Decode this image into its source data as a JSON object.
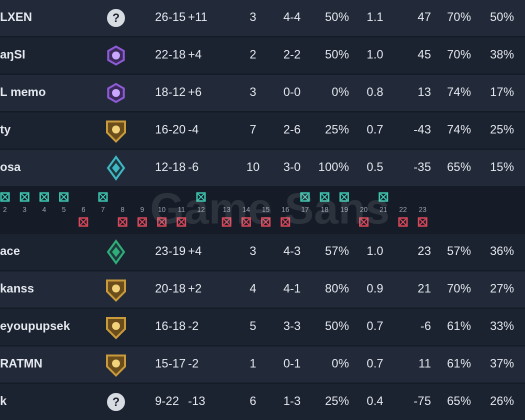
{
  "team1": [
    {
      "name": "LXEN",
      "rank_label": "?",
      "cells": [
        "26-15",
        "+11",
        "3",
        "4-4",
        "50%",
        "1.1",
        "47",
        "70%",
        "50%"
      ]
    },
    {
      "name": "aŋSI",
      "cells": [
        "22-18",
        "+4",
        "2",
        "2-2",
        "50%",
        "1.0",
        "45",
        "70%",
        "38%"
      ]
    },
    {
      "name": "L memo",
      "cells": [
        "18-12",
        "+6",
        "3",
        "0-0",
        "0%",
        "0.8",
        "13",
        "74%",
        "17%"
      ]
    },
    {
      "name": "ty",
      "cells": [
        "16-20",
        "-4",
        "7",
        "2-6",
        "25%",
        "0.7",
        "-43",
        "74%",
        "25%"
      ]
    },
    {
      "name": "osa",
      "cells": [
        "12-18",
        "-6",
        "10",
        "3-0",
        "100%",
        "0.5",
        "-35",
        "65%",
        "15%"
      ]
    }
  ],
  "rounds": [
    2,
    3,
    4,
    5,
    6,
    7,
    8,
    9,
    10,
    11,
    12,
    13,
    14,
    15,
    16,
    17,
    18,
    19,
    20,
    21,
    22,
    23
  ],
  "watermark": "Game Sans",
  "team2": [
    {
      "name": "ace",
      "cells": [
        "23-19",
        "+4",
        "3",
        "4-3",
        "57%",
        "1.0",
        "23",
        "57%",
        "36%"
      ]
    },
    {
      "name": "kanss",
      "cells": [
        "20-18",
        "+2",
        "4",
        "4-1",
        "80%",
        "0.9",
        "21",
        "70%",
        "27%"
      ]
    },
    {
      "name": "eyoupupsek",
      "cells": [
        "16-18",
        "-2",
        "5",
        "3-3",
        "50%",
        "0.7",
        "-6",
        "61%",
        "33%"
      ]
    },
    {
      "name": "RATMN",
      "cells": [
        "15-17",
        "-2",
        "1",
        "0-1",
        "0%",
        "0.7",
        "11",
        "61%",
        "37%"
      ]
    },
    {
      "name": "k",
      "rank_label": "?",
      "cells": [
        "9-22",
        "-13",
        "6",
        "1-3",
        "25%",
        "0.4",
        "-75",
        "65%",
        "26%"
      ]
    }
  ]
}
